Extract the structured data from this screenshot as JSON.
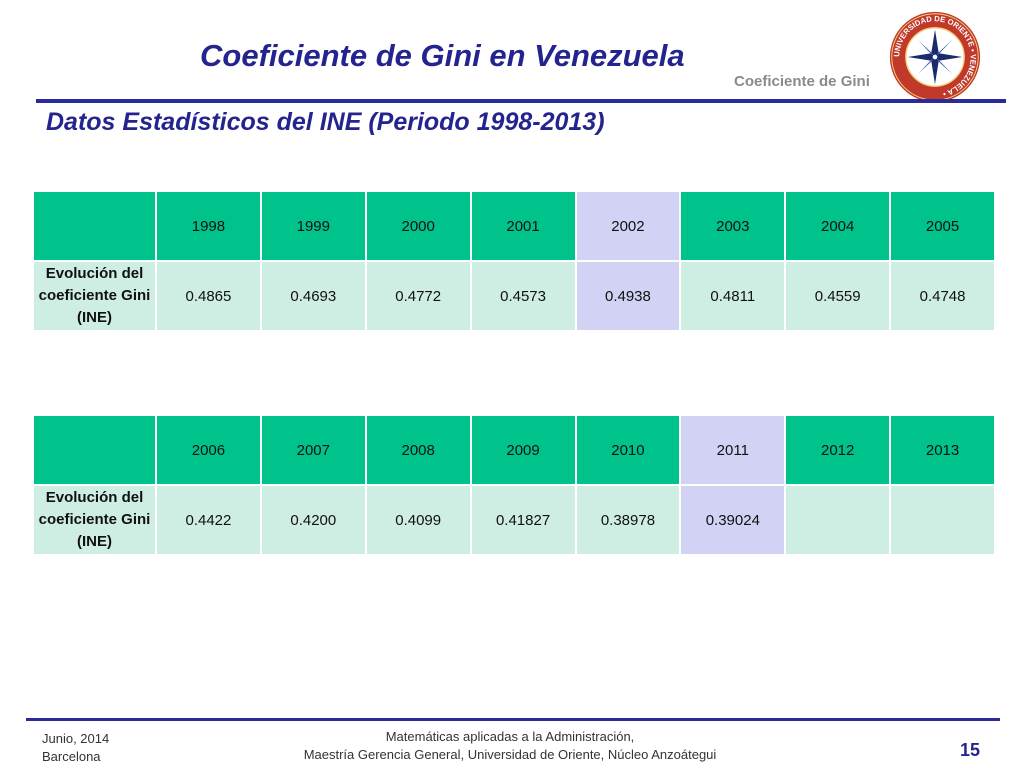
{
  "slide": {
    "title": "Coeficiente de Gini en Venezuela",
    "section_tag": "Coeficiente de Gini",
    "subtitle": "Datos Estadísticos del INE (Periodo 1998-2013)"
  },
  "logo": {
    "icon": "university-seal-icon",
    "ring_text": "UNIVERSIDAD DE ORIENTE • VENEZUELA •",
    "colors": {
      "ring": "#c0392b",
      "inner": "#ffffff",
      "rose": "#1a2a6c"
    }
  },
  "tables": [
    {
      "row_label": "Evolución del coeficiente Gini (INE)",
      "years": [
        "1998",
        "1999",
        "2000",
        "2001",
        "2002",
        "2003",
        "2004",
        "2005"
      ],
      "values": [
        "0.4865",
        "0.4693",
        "0.4772",
        "0.4573",
        "0.4938",
        "0.4811",
        "0.4559",
        "0.4748"
      ],
      "highlight_column": 4
    },
    {
      "row_label": "Evolución del coeficiente Gini (INE)",
      "years": [
        "2006",
        "2007",
        "2008",
        "2009",
        "2010",
        "2011",
        "2012",
        "2013"
      ],
      "values": [
        "0.4422",
        "0.4200",
        "0.4099",
        "0.41827",
        "0.38978",
        "0.39024",
        "",
        ""
      ],
      "highlight_column": 5
    }
  ],
  "colors": {
    "title": "#24248f",
    "header_green": "#00c38c",
    "cell_mint": "#cfeee3",
    "highlight_lavender": "#d2d2f5"
  },
  "footer": {
    "date": "Junio, 2014",
    "city": "Barcelona",
    "line1": "Matemáticas aplicadas a la Administración,",
    "line2": "Maestría Gerencia General, Universidad de Oriente, Núcleo Anzoátegui",
    "page": "15"
  }
}
